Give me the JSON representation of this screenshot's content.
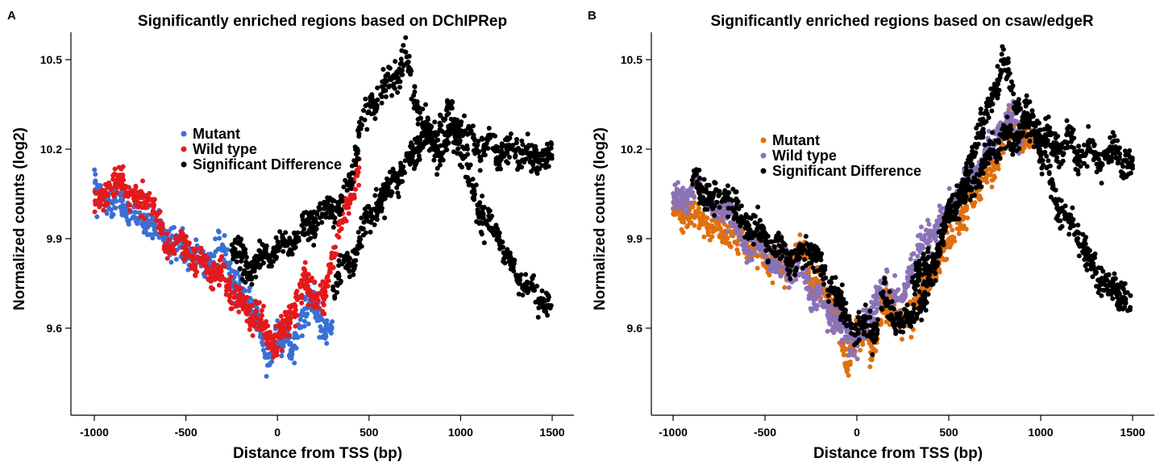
{
  "chart_data": [
    {
      "panel": "A",
      "type": "scatter",
      "title": "Significantly enriched regions based on DChIPRep",
      "xlabel": "Distance from TSS (bp)",
      "ylabel": "Normalized counts (log2)",
      "xlim": [
        -1000,
        1500
      ],
      "ylim": [
        9.4,
        10.6
      ],
      "xticks": [
        -1000,
        -500,
        0,
        500,
        1000,
        1500
      ],
      "yticks": [
        9.6,
        9.9,
        10.2,
        10.5
      ],
      "legend": {
        "position": "center",
        "entries": [
          {
            "label": "Mutant",
            "color": "#3a6fd4"
          },
          {
            "label": "Wild type",
            "color": "#e31a1c"
          },
          {
            "label": "Significant Difference",
            "color": "#000000"
          }
        ]
      },
      "series": [
        {
          "name": "Mutant",
          "color": "#3a6fd4",
          "x": [
            -1000,
            -900,
            -800,
            -700,
            -600,
            -500,
            -450,
            -400,
            -350,
            -300,
            -250,
            -200,
            -150,
            -100,
            -75,
            -50,
            -25,
            0,
            25,
            50,
            75,
            100,
            150,
            200,
            250,
            300
          ],
          "y": [
            10.05,
            10.02,
            9.99,
            9.95,
            9.9,
            9.86,
            9.84,
            9.8,
            9.85,
            9.88,
            9.78,
            9.72,
            9.7,
            9.62,
            9.52,
            9.48,
            9.56,
            9.58,
            9.55,
            9.6,
            9.52,
            9.57,
            9.65,
            9.7,
            9.58,
            9.62
          ]
        },
        {
          "name": "Wild type",
          "color": "#e31a1c",
          "x": [
            -1000,
            -950,
            -900,
            -850,
            -800,
            -750,
            -700,
            -650,
            -600,
            -550,
            -500,
            -450,
            -400,
            -350,
            -300,
            -250,
            -200,
            -150,
            -100,
            -50,
            0,
            50,
            100,
            150,
            200,
            250,
            300,
            350,
            400,
            450
          ],
          "y": [
            10.02,
            10.05,
            10.07,
            10.1,
            10.05,
            10.0,
            10.05,
            9.95,
            9.88,
            9.87,
            9.88,
            9.8,
            9.82,
            9.78,
            9.78,
            9.72,
            9.68,
            9.65,
            9.62,
            9.58,
            9.55,
            9.62,
            9.68,
            9.75,
            9.72,
            9.68,
            9.85,
            9.95,
            10.05,
            10.15
          ]
        },
        {
          "name": "Significant Difference",
          "color": "#000000",
          "x": [
            -250,
            -200,
            -150,
            300,
            350,
            400,
            450,
            500,
            550,
            600,
            650,
            700,
            750,
            800,
            850,
            900,
            950,
            1000,
            1050,
            1100,
            1150,
            1200,
            1250,
            1300,
            1350,
            1400,
            1450,
            1500
          ],
          "y": [
            9.88,
            9.84,
            9.8,
            10.0,
            10.02,
            10.1,
            10.25,
            10.35,
            10.38,
            10.42,
            10.45,
            10.5,
            10.38,
            10.28,
            10.22,
            10.18,
            10.25,
            10.28,
            10.24,
            10.2,
            10.22,
            10.18,
            10.2,
            10.17,
            10.19,
            10.16,
            10.18,
            10.15
          ],
          "x2": [
            300,
            350,
            400,
            450,
            500,
            550,
            600,
            650,
            700,
            750,
            800,
            850,
            900,
            950,
            1000,
            1050,
            1100,
            1150,
            1200,
            1250,
            1300,
            1350,
            1400,
            1450,
            1500
          ],
          "y2": [
            9.75,
            9.8,
            9.82,
            9.9,
            9.98,
            10.02,
            10.05,
            10.1,
            10.15,
            10.2,
            10.25,
            10.22,
            10.3,
            10.32,
            10.2,
            10.1,
            10.0,
            9.95,
            9.92,
            9.85,
            9.78,
            9.75,
            9.72,
            9.7,
            9.66
          ]
        }
      ]
    },
    {
      "panel": "B",
      "type": "scatter",
      "title": "Significantly enriched regions based on csaw/edgeR",
      "xlabel": "Distance from TSS (bp)",
      "ylabel": "Normalized counts (log2)",
      "xlim": [
        -1000,
        1500
      ],
      "ylim": [
        9.4,
        10.6
      ],
      "xticks": [
        -1000,
        -500,
        0,
        500,
        1000,
        1500
      ],
      "yticks": [
        9.6,
        9.9,
        10.2,
        10.5
      ],
      "legend": {
        "position": "center",
        "entries": [
          {
            "label": "Mutant",
            "color": "#e0700f"
          },
          {
            "label": "Wild type",
            "color": "#8b73b8"
          },
          {
            "label": "Significant Difference",
            "color": "#000000"
          }
        ]
      },
      "series": [
        {
          "name": "Mutant",
          "color": "#e0700f",
          "x": [
            -1000,
            -900,
            -800,
            -700,
            -600,
            -500,
            -450,
            -400,
            -350,
            -300,
            -250,
            -200,
            -150,
            -100,
            -75,
            -50,
            -25,
            0,
            25,
            50,
            75,
            100,
            150,
            200,
            250,
            300,
            850,
            900,
            950
          ],
          "y": [
            10.0,
            9.98,
            9.94,
            9.92,
            9.88,
            9.84,
            9.82,
            9.78,
            9.82,
            9.86,
            9.78,
            9.72,
            9.7,
            9.62,
            9.52,
            9.48,
            9.56,
            9.58,
            9.55,
            9.6,
            9.52,
            9.57,
            9.65,
            9.7,
            9.6,
            9.66,
            10.28,
            10.25,
            10.2
          ]
        },
        {
          "name": "Wild type",
          "color": "#8b73b8",
          "x": [
            -1000,
            -950,
            -900,
            -850,
            -800,
            -750,
            -700,
            -650,
            -600,
            -550,
            -500,
            -450,
            -400,
            -350,
            -300,
            -250,
            -200,
            -150,
            -100,
            -50,
            0,
            50,
            100,
            150,
            200,
            250,
            300,
            850,
            900
          ],
          "y": [
            10.02,
            10.04,
            10.06,
            10.08,
            10.02,
            9.98,
            10.02,
            9.93,
            9.88,
            9.87,
            9.88,
            9.8,
            9.82,
            9.78,
            9.78,
            9.72,
            9.68,
            9.65,
            9.62,
            9.58,
            9.55,
            9.62,
            9.68,
            9.75,
            9.72,
            9.68,
            9.82,
            10.32,
            10.22
          ]
        },
        {
          "name": "Significant Difference",
          "color": "#000000",
          "x": [
            -900,
            -850,
            -800,
            -750,
            -700,
            -650,
            -500,
            -450,
            -400,
            -350,
            -300,
            -250,
            -200,
            -150,
            -100,
            -50,
            0,
            50,
            100,
            150,
            200,
            250,
            300,
            350,
            400,
            450,
            500,
            550,
            600,
            650,
            700,
            750,
            800,
            850,
            900,
            950,
            1000,
            1050,
            1100,
            1150,
            1200,
            1250,
            1300,
            1350,
            1400,
            1450,
            1500
          ],
          "y": [
            10.1,
            10.06,
            10.04,
            10.02,
            10.05,
            9.98,
            9.9,
            9.88,
            9.85,
            9.82,
            9.85,
            9.88,
            9.8,
            9.75,
            9.7,
            9.62,
            9.58,
            9.62,
            9.58,
            9.7,
            9.65,
            9.6,
            9.65,
            9.68,
            9.75,
            9.85,
            9.98,
            10.05,
            10.1,
            10.25,
            10.3,
            10.4,
            10.5,
            10.38,
            10.32,
            10.28,
            10.25,
            10.22,
            10.2,
            10.24,
            10.18,
            10.2,
            10.18,
            10.17,
            10.19,
            10.16,
            10.15
          ],
          "x2": [
            300,
            350,
            400,
            450,
            500,
            550,
            600,
            650,
            700,
            750,
            800,
            850,
            900,
            950,
            1000,
            1050,
            1100,
            1150,
            1200,
            1250,
            1300,
            1350,
            1400,
            1450,
            1500
          ],
          "y2": [
            9.75,
            9.8,
            9.82,
            9.9,
            9.98,
            10.02,
            10.05,
            10.1,
            10.15,
            10.2,
            10.25,
            10.22,
            10.28,
            10.3,
            10.2,
            10.1,
            10.0,
            9.95,
            9.92,
            9.85,
            9.78,
            9.75,
            9.72,
            9.7,
            9.66
          ]
        }
      ]
    }
  ]
}
